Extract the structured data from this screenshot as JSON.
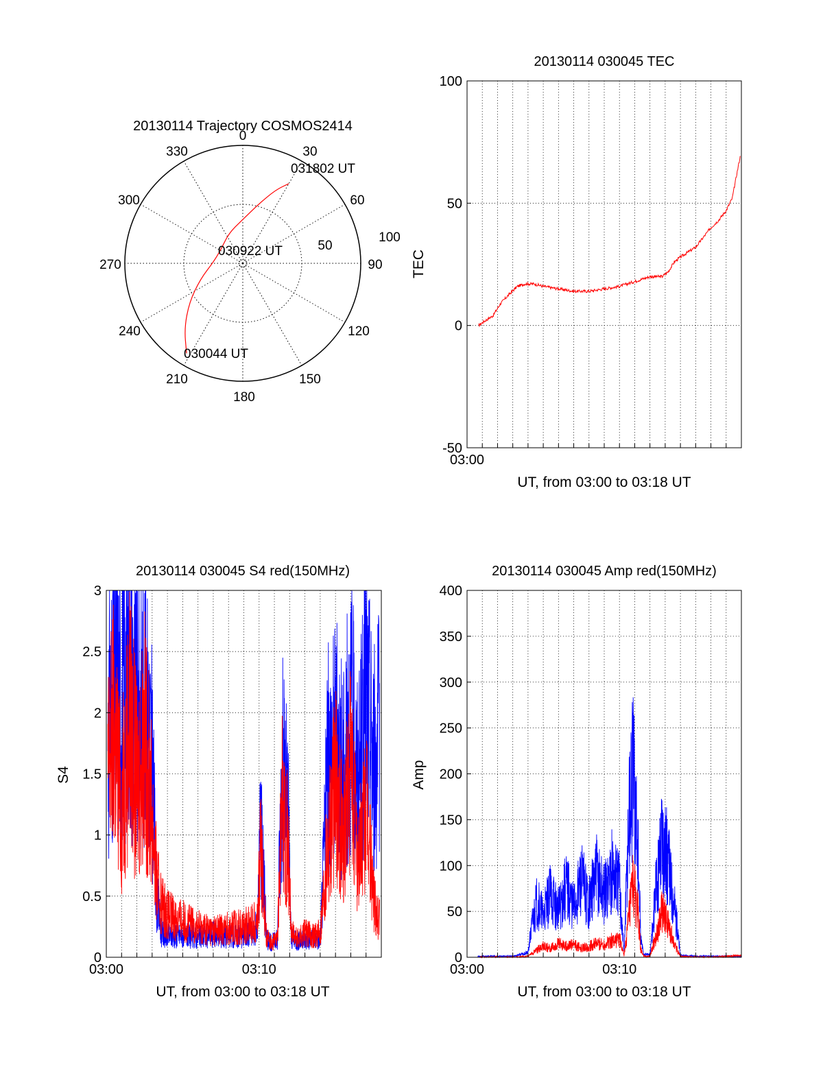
{
  "chart_data": [
    {
      "type": "polar",
      "title": "20130114 Trajectory COSMOS2414",
      "azimuth_labels": [
        "0",
        "30",
        "60",
        "90",
        "120",
        "150",
        "180",
        "210",
        "240",
        "270",
        "300",
        "330"
      ],
      "radial_labels": [
        "50",
        "100"
      ],
      "radial_range": [
        0,
        100
      ],
      "grid": true,
      "track": {
        "color": "#ff0000",
        "start_label": "030044 UT",
        "mid_label": "030922 UT",
        "end_label": "031802 UT",
        "points": [
          {
            "az": 212,
            "r": 90
          },
          {
            "az": 222,
            "r": 74
          },
          {
            "az": 234,
            "r": 56
          },
          {
            "az": 250,
            "r": 38
          },
          {
            "az": 272,
            "r": 25
          },
          {
            "az": 305,
            "r": 22
          },
          {
            "az": 335,
            "r": 28
          },
          {
            "az": 358,
            "r": 36
          },
          {
            "az": 15,
            "r": 52
          },
          {
            "az": 24,
            "r": 68
          },
          {
            "az": 30,
            "r": 78
          }
        ]
      }
    },
    {
      "type": "line",
      "title": "20130114 030045 TEC",
      "xlabel": "UT, from 03:00 to 03:18 UT",
      "ylabel": "TEC",
      "xlim": [
        0,
        18
      ],
      "ylim": [
        -50,
        100
      ],
      "yticks": [
        -50,
        0,
        50,
        100
      ],
      "xtick_labels": [
        {
          "x": 0,
          "label": "03:00"
        }
      ],
      "grid": true,
      "series": [
        {
          "color": "#ff0000",
          "x": [
            0.75,
            1.2,
            1.7,
            2.2,
            2.8,
            3.3,
            3.8,
            4.4,
            5.0,
            6.0,
            7.0,
            8.0,
            9.0,
            10.0,
            11.0,
            12.0,
            12.8,
            13.2,
            13.6,
            14.0,
            14.5,
            15.0,
            15.5,
            16.0,
            16.5,
            17.0,
            17.4,
            17.7,
            17.95
          ],
          "y": [
            0,
            2,
            4,
            9,
            13,
            16,
            17,
            17,
            16,
            15,
            14,
            14,
            15,
            16,
            18,
            20,
            20,
            22,
            26,
            28,
            30,
            32,
            36,
            40,
            43,
            47,
            52,
            62,
            70
          ]
        }
      ]
    },
    {
      "type": "line",
      "title": "20130114 030045 S4 red(150MHz)",
      "xlabel": "UT, from 03:00 to 03:18 UT",
      "ylabel": "S4",
      "xlim": [
        0,
        18
      ],
      "ylim": [
        0,
        3
      ],
      "yticks": [
        0,
        0.5,
        1,
        1.5,
        2,
        2.5,
        3
      ],
      "xtick_labels": [
        {
          "x": 0,
          "label": "03:00"
        },
        {
          "x": 10,
          "label": "03:10"
        }
      ],
      "grid": true,
      "series": [
        {
          "color": "#0000ff",
          "x": [
            0.1,
            0.5,
            1.0,
            1.5,
            2.0,
            2.5,
            3.0,
            3.3,
            3.6,
            4.0,
            5.0,
            6.0,
            7.0,
            8.0,
            9.0,
            9.5,
            9.9,
            10.1,
            10.5,
            10.8,
            11.2,
            11.5,
            11.9,
            12.1,
            12.5,
            13.0,
            13.5,
            14.0,
            14.5,
            15.0,
            15.5,
            16.0,
            16.5,
            17.0,
            17.5,
            17.9
          ],
          "y": [
            1.8,
            2.3,
            2.0,
            2.5,
            1.9,
            2.2,
            1.6,
            0.5,
            0.2,
            0.17,
            0.18,
            0.16,
            0.19,
            0.17,
            0.18,
            0.2,
            0.25,
            1.2,
            0.15,
            0.12,
            0.15,
            1.6,
            1.2,
            0.15,
            0.13,
            0.14,
            0.15,
            0.14,
            1.6,
            1.8,
            1.5,
            2.0,
            1.4,
            2.2,
            1.6,
            1.8
          ]
        },
        {
          "color": "#ff0000",
          "x": [
            0.1,
            0.5,
            1.0,
            1.5,
            2.0,
            2.5,
            3.0,
            3.3,
            3.6,
            4.0,
            5.0,
            6.0,
            7.0,
            8.0,
            9.0,
            9.5,
            9.9,
            10.1,
            10.5,
            10.8,
            11.2,
            11.5,
            11.9,
            12.1,
            12.5,
            13.0,
            13.5,
            14.0,
            14.5,
            15.0,
            15.5,
            16.0,
            16.5,
            17.0,
            17.5,
            17.9
          ],
          "y": [
            1.5,
            1.9,
            1.2,
            2.0,
            1.4,
            1.8,
            1.2,
            0.6,
            0.45,
            0.35,
            0.3,
            0.25,
            0.22,
            0.24,
            0.25,
            0.28,
            0.3,
            0.9,
            0.15,
            0.12,
            0.14,
            1.3,
            0.9,
            0.2,
            0.15,
            0.2,
            0.18,
            0.2,
            1.0,
            1.4,
            1.0,
            1.5,
            0.8,
            1.2,
            0.5,
            0.3
          ]
        }
      ]
    },
    {
      "type": "line",
      "title": "20130114 030045 Amp red(150MHz)",
      "xlabel": "UT, from 03:00 to 03:18 UT",
      "ylabel": "Amp",
      "xlim": [
        0,
        18
      ],
      "ylim": [
        0,
        400
      ],
      "yticks": [
        0,
        50,
        100,
        150,
        200,
        250,
        300,
        350,
        400
      ],
      "xtick_labels": [
        {
          "x": 0,
          "label": "03:00"
        },
        {
          "x": 10,
          "label": "03:10"
        }
      ],
      "grid": true,
      "series": [
        {
          "color": "#0000ff",
          "x": [
            0.7,
            2.0,
            3.0,
            4.0,
            4.3,
            4.6,
            5.0,
            5.5,
            6.0,
            6.5,
            7.0,
            7.5,
            8.0,
            8.5,
            9.0,
            9.5,
            10.0,
            10.3,
            10.6,
            10.9,
            11.2,
            11.4,
            11.6,
            12.0,
            12.5,
            12.8,
            13.2,
            13.6,
            14.0,
            15.0,
            16.0,
            17.0,
            18.0
          ],
          "y": [
            1,
            1,
            1,
            5,
            40,
            60,
            45,
            70,
            50,
            80,
            55,
            85,
            60,
            90,
            70,
            95,
            80,
            5,
            150,
            200,
            120,
            20,
            3,
            3,
            90,
            140,
            100,
            60,
            2,
            1,
            1,
            1,
            1
          ]
        },
        {
          "color": "#ff0000",
          "x": [
            0.7,
            2.0,
            3.0,
            4.0,
            4.3,
            4.6,
            5.0,
            5.5,
            6.0,
            6.5,
            7.0,
            7.5,
            8.0,
            8.5,
            9.0,
            9.5,
            10.0,
            10.3,
            10.6,
            10.9,
            11.2,
            11.4,
            11.6,
            12.0,
            12.5,
            12.8,
            13.2,
            13.6,
            14.0,
            15.0,
            16.0,
            17.0,
            18.0
          ],
          "y": [
            0,
            0,
            0,
            1,
            5,
            8,
            12,
            10,
            15,
            12,
            14,
            10,
            12,
            15,
            14,
            18,
            20,
            2,
            40,
            80,
            50,
            8,
            1,
            1,
            30,
            50,
            35,
            15,
            1,
            0,
            0,
            1,
            2
          ]
        }
      ]
    }
  ]
}
